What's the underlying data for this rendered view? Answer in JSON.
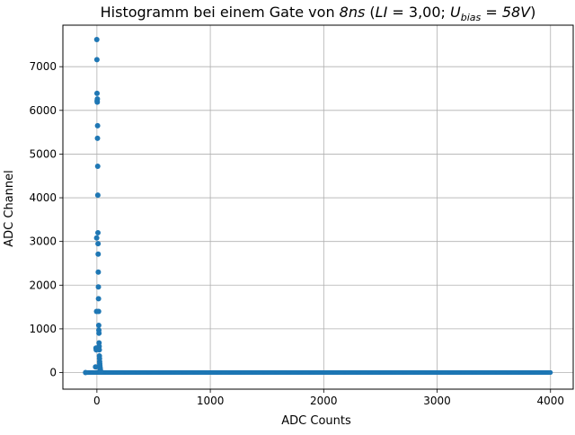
{
  "chart_data": {
    "type": "scatter",
    "title": {
      "text": "Histogramm bei einem Gate von",
      "gate_value": "8",
      "gate_unit": "ns",
      "li_label": "LI",
      "li_value": "3,00",
      "ubias_label": "U",
      "ubias_subscript": "bias",
      "ubias_value": "58V"
    },
    "xlabel": "ADC Counts",
    "ylabel": "ADC Channel",
    "xlim": [
      -300,
      4200
    ],
    "ylim": [
      -380,
      7950
    ],
    "xticks": [
      0,
      1000,
      2000,
      3000,
      4000
    ],
    "yticks": [
      0,
      1000,
      2000,
      3000,
      4000,
      5000,
      6000,
      7000
    ],
    "grid": true,
    "marker_color": "#1f77b4",
    "baseline": {
      "x_start": -100,
      "x_end": 4000,
      "step": 1,
      "y": 0
    },
    "peak_points": [
      {
        "x": -100,
        "y": 0
      },
      {
        "x": -12,
        "y": 130
      },
      {
        "x": -8,
        "y": 560
      },
      {
        "x": -6,
        "y": 520
      },
      {
        "x": -3,
        "y": 1400
      },
      {
        "x": -2,
        "y": 3080
      },
      {
        "x": -1,
        "y": 7620
      },
      {
        "x": 0,
        "y": 7160
      },
      {
        "x": 1,
        "y": 6390
      },
      {
        "x": 2,
        "y": 6220
      },
      {
        "x": 3,
        "y": 6190
      },
      {
        "x": 4,
        "y": 6260
      },
      {
        "x": 5,
        "y": 5360
      },
      {
        "x": 6,
        "y": 5650
      },
      {
        "x": 7,
        "y": 4720
      },
      {
        "x": 8,
        "y": 4060
      },
      {
        "x": 9,
        "y": 3200
      },
      {
        "x": 10,
        "y": 2950
      },
      {
        "x": 11,
        "y": 2710
      },
      {
        "x": 12,
        "y": 2300
      },
      {
        "x": 13,
        "y": 1960
      },
      {
        "x": 14,
        "y": 1690
      },
      {
        "x": 15,
        "y": 1400
      },
      {
        "x": 16,
        "y": 1080
      },
      {
        "x": 17,
        "y": 970
      },
      {
        "x": 18,
        "y": 900
      },
      {
        "x": 19,
        "y": 680
      },
      {
        "x": 20,
        "y": 600
      },
      {
        "x": 21,
        "y": 520
      },
      {
        "x": 22,
        "y": 380
      },
      {
        "x": 23,
        "y": 320
      },
      {
        "x": 24,
        "y": 250
      },
      {
        "x": 25,
        "y": 200
      },
      {
        "x": 26,
        "y": 160
      },
      {
        "x": 27,
        "y": 130
      },
      {
        "x": 28,
        "y": 100
      },
      {
        "x": 29,
        "y": 80
      },
      {
        "x": 30,
        "y": 60
      },
      {
        "x": 31,
        "y": 45
      },
      {
        "x": 32,
        "y": 30
      },
      {
        "x": 33,
        "y": 20
      },
      {
        "x": 34,
        "y": 12
      },
      {
        "x": 35,
        "y": 8
      }
    ]
  }
}
